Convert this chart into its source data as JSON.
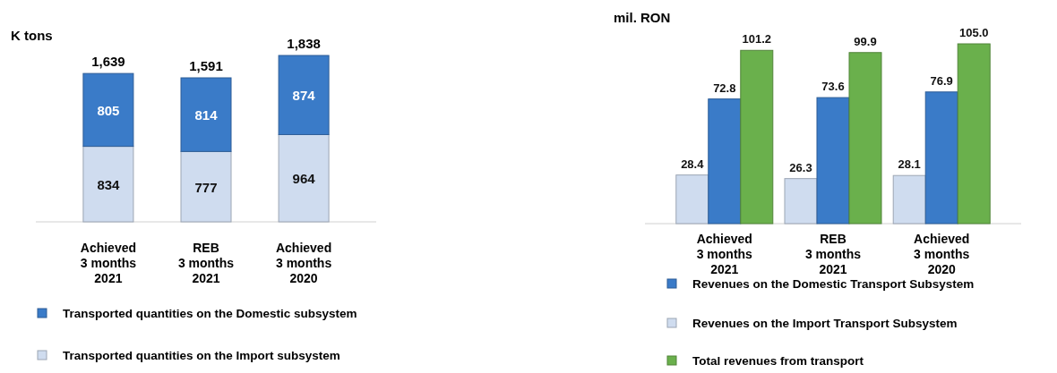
{
  "chart_data": [
    {
      "type": "bar",
      "ylabel": "K tons",
      "categories": [
        "Achieved\n3 months\n2021",
        "REB\n3 months\n2021",
        "Achieved\n3 months\n2020"
      ],
      "stacked": true,
      "data_labels": true,
      "totals": [
        "1,639",
        "1,591",
        "1,838"
      ],
      "legend": "bottom",
      "series": [
        {
          "name": "Transported quantities on the Import subsystem",
          "color": "#cfdcef",
          "values": [
            834,
            777,
            964
          ]
        },
        {
          "name": "Transported quantities on the Domestic subsystem",
          "color": "#3a7bc8",
          "values": [
            805,
            814,
            874
          ]
        }
      ]
    },
    {
      "type": "bar",
      "ylabel": "mil. RON",
      "categories": [
        "Achieved\n3 months\n2021",
        "REB\n3 months\n2021",
        "Achieved\n3 months\n2020"
      ],
      "legend": "bottom",
      "series": [
        {
          "name": "Revenues on the Import Transport Subsystem",
          "color": "#cfdcef",
          "values": [
            28.4,
            26.3,
            28.1
          ],
          "value_labels": [
            "28.4",
            "26.3",
            "28.1"
          ]
        },
        {
          "name": "Revenues on the Domestic Transport Subsystem",
          "color": "#3a7bc8",
          "values": [
            72.8,
            73.6,
            76.9
          ],
          "value_labels": [
            "72.8",
            "73.6",
            "76.9"
          ]
        },
        {
          "name": "Total revenues from transport",
          "color": "#6ab04c",
          "values": [
            101.2,
            99.9,
            105.0
          ],
          "value_labels": [
            "101.2",
            "99.9",
            "105.0"
          ]
        }
      ]
    }
  ]
}
